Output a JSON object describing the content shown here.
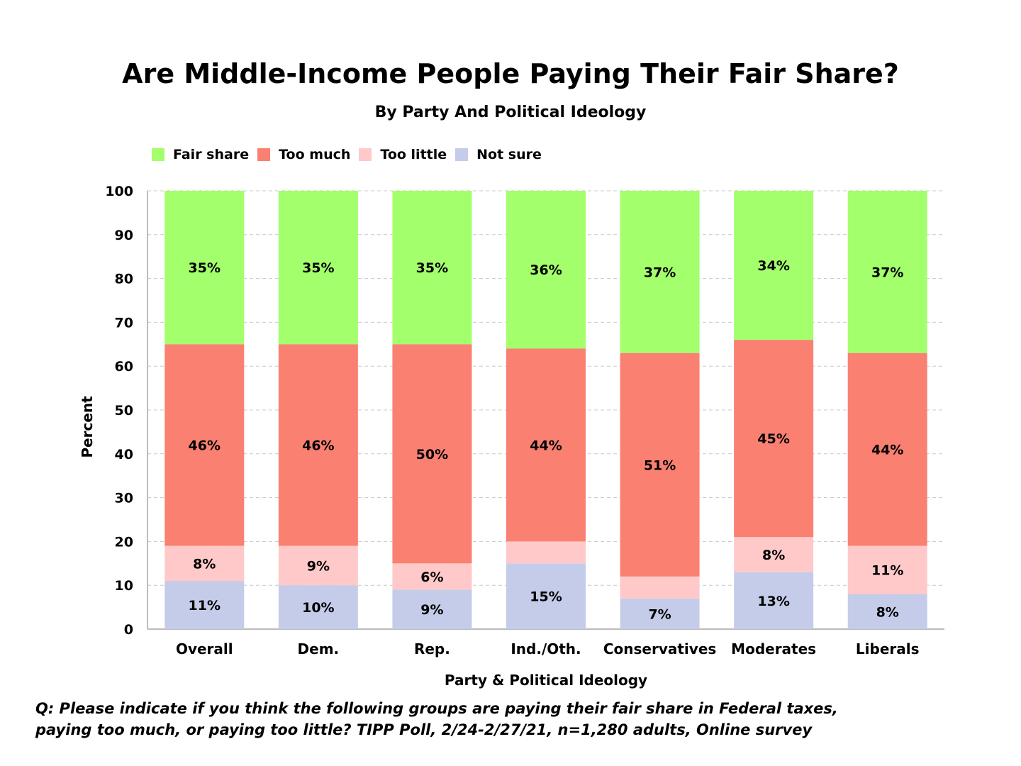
{
  "chart_data": {
    "type": "bar",
    "stacked": true,
    "title": "Are Middle-Income People Paying Their Fair Share?",
    "subtitle": "By Party And Political Ideology",
    "xlabel": "Party & Political Ideology",
    "ylabel": "Percent",
    "ylim": [
      0,
      100
    ],
    "yticks": [
      0,
      10,
      20,
      30,
      40,
      50,
      60,
      70,
      80,
      90,
      100
    ],
    "grid": true,
    "legend_position": "top-left",
    "categories": [
      "Overall",
      "Dem.",
      "Rep.",
      "Ind./Oth.",
      "Conservatives",
      "Moderates",
      "Liberals"
    ],
    "series": [
      {
        "name": "Not sure",
        "color": "#c5cce9",
        "values": [
          11,
          10,
          9,
          15,
          7,
          13,
          8
        ],
        "labels": [
          "11%",
          "10%",
          "9%",
          "15%",
          "7%",
          "13%",
          "8%"
        ]
      },
      {
        "name": "Too little",
        "color": "#ffc9c9",
        "values": [
          8,
          9,
          6,
          5,
          5,
          8,
          11
        ],
        "labels": [
          "8%",
          "9%",
          "6%",
          "",
          "",
          "8%",
          "11%"
        ]
      },
      {
        "name": "Too much",
        "color": "#fa8072",
        "values": [
          46,
          46,
          50,
          44,
          51,
          45,
          44
        ],
        "labels": [
          "46%",
          "46%",
          "50%",
          "44%",
          "51%",
          "45%",
          "44%"
        ]
      },
      {
        "name": "Fair share",
        "color": "#a3ff6b",
        "values": [
          35,
          35,
          35,
          36,
          37,
          34,
          37
        ],
        "labels": [
          "35%",
          "35%",
          "35%",
          "36%",
          "37%",
          "34%",
          "37%"
        ]
      }
    ],
    "legend_order": [
      "Fair share",
      "Too much",
      "Too little",
      "Not sure"
    ]
  },
  "note_line1": "Q:  Please indicate if you think the following groups are paying their fair share in Federal taxes,",
  "note_line2": "paying too much, or paying too little?  TIPP Poll, 2/24-2/27/21, n=1,280 adults, Online survey"
}
